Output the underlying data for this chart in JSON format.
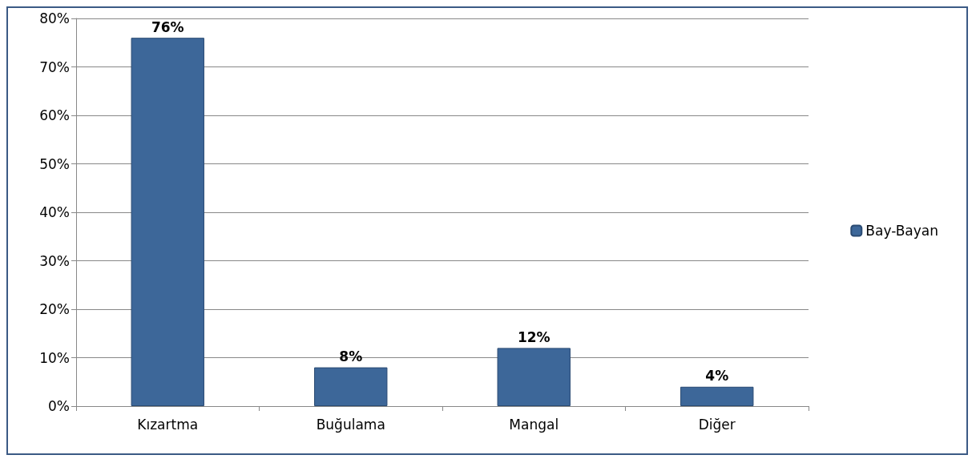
{
  "chart_data": {
    "type": "bar",
    "categories": [
      "Kızartma",
      "Buğulama",
      "Mangal",
      "Diğer"
    ],
    "series": [
      {
        "name": "Bay-Bayan",
        "color": "#3d6799",
        "values": [
          76,
          8,
          12,
          4
        ],
        "value_labels": [
          "76%",
          "8%",
          "12%",
          "4%"
        ]
      }
    ],
    "ylim": [
      0,
      80
    ],
    "yticks": [
      {
        "value": 0,
        "label": "0%"
      },
      {
        "value": 10,
        "label": "10%"
      },
      {
        "value": 20,
        "label": "20%"
      },
      {
        "value": 30,
        "label": "30%"
      },
      {
        "value": 40,
        "label": "40%"
      },
      {
        "value": 50,
        "label": "50%"
      },
      {
        "value": 60,
        "label": "60%"
      },
      {
        "value": 70,
        "label": "70%"
      },
      {
        "value": 80,
        "label": "80%"
      }
    ],
    "grid": "y",
    "legend": "right"
  }
}
